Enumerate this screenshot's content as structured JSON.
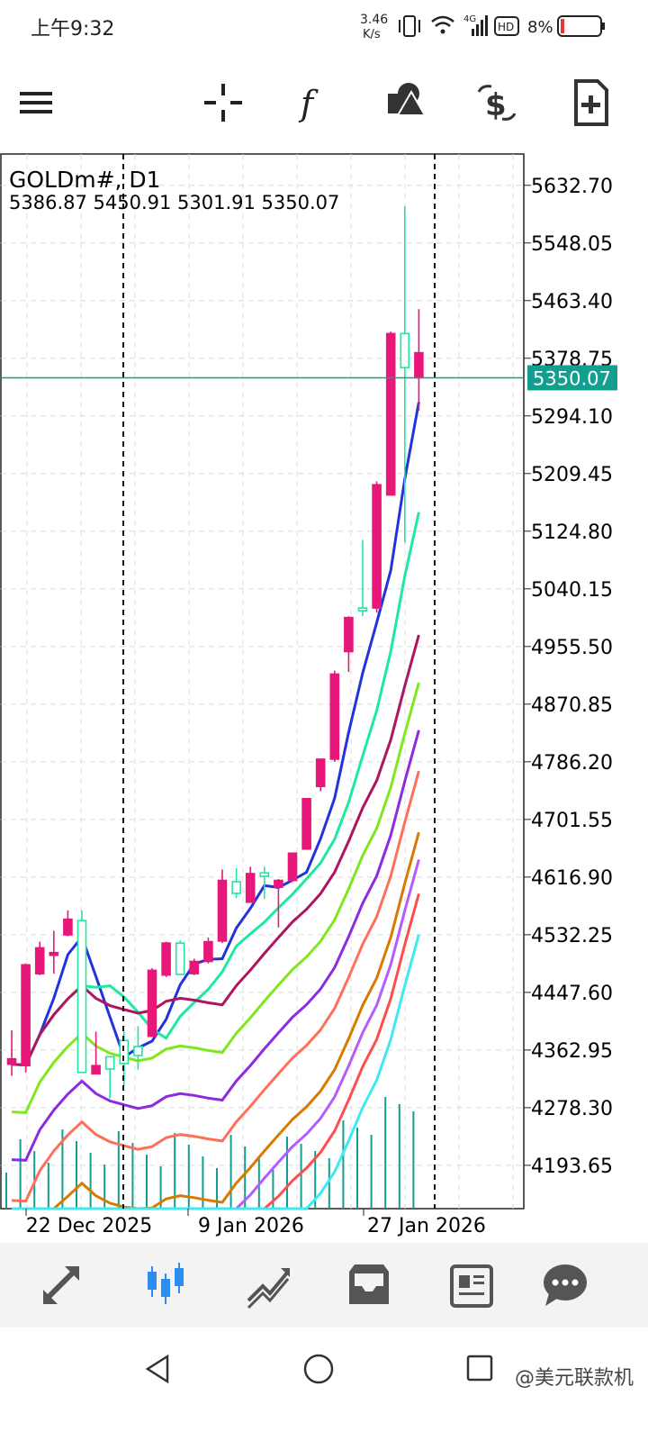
{
  "status_bar": {
    "time": "上午9:32",
    "net_speed_top": "3.46",
    "net_speed_bottom": "K/s",
    "network_type": "4G",
    "hd_label": "HD",
    "battery": "8%"
  },
  "toolbar": {
    "icons": [
      "menu-icon",
      "crosshair-icon",
      "indicators-icon",
      "objects-icon",
      "trade-icon",
      "new-order-icon"
    ]
  },
  "chart": {
    "symbol": "GOLDm#, D1",
    "ohlc_text": "5386.87 5450.91 5301.91 5350.07",
    "current_price": "5350.07",
    "y_labels": [
      "5632.70",
      "5548.05",
      "5463.40",
      "5378.75",
      "5294.10",
      "5209.45",
      "5124.80",
      "5040.15",
      "4955.50",
      "4870.85",
      "4786.20",
      "4701.55",
      "4616.90",
      "4532.25",
      "4447.60",
      "4362.95",
      "4278.30",
      "4193.65"
    ],
    "x_labels": [
      "22 Dec 2025",
      "9 Jan 2026",
      "27 Jan 2026"
    ],
    "colors": {
      "bear": "#e8177a",
      "bull": "#20e6a0",
      "price_line": "#139f90",
      "grid": "#dcdcdc"
    }
  },
  "chart_data": {
    "type": "candlestick",
    "symbol": "GOLDm#",
    "timeframe": "D1",
    "ylim": [
      4130,
      5680
    ],
    "last": {
      "open": 5386.87,
      "high": 5450.91,
      "low": 5301.91,
      "close": 5350.07
    },
    "candles": [
      {
        "o": 4350,
        "h": 4392,
        "l": 4325,
        "c": 4342
      },
      {
        "o": 4488,
        "h": 4490,
        "l": 4330,
        "c": 4340
      },
      {
        "o": 4513,
        "h": 4522,
        "l": 4473,
        "c": 4475
      },
      {
        "o": 4506,
        "h": 4538,
        "l": 4475,
        "c": 4502
      },
      {
        "o": 4555,
        "h": 4568,
        "l": 4530,
        "c": 4532
      },
      {
        "o": 4330,
        "h": 4568,
        "l": 4330,
        "c": 4553
      },
      {
        "o": 4340,
        "h": 4390,
        "l": 4327,
        "c": 4328
      },
      {
        "o": 4335,
        "h": 4352,
        "l": 4292,
        "c": 4353
      },
      {
        "o": 4343,
        "h": 4390,
        "l": 4310,
        "c": 4377
      },
      {
        "o": 4355,
        "h": 4398,
        "l": 4334,
        "c": 4368
      },
      {
        "o": 4480,
        "h": 4483,
        "l": 4382,
        "c": 4383
      },
      {
        "o": 4520,
        "h": 4522,
        "l": 4470,
        "c": 4473
      },
      {
        "o": 4474,
        "h": 4524,
        "l": 4478,
        "c": 4520
      },
      {
        "o": 4493,
        "h": 4497,
        "l": 4473,
        "c": 4475
      },
      {
        "o": 4522,
        "h": 4528,
        "l": 4490,
        "c": 4493
      },
      {
        "o": 4612,
        "h": 4628,
        "l": 4520,
        "c": 4523
      },
      {
        "o": 4593,
        "h": 4630,
        "l": 4586,
        "c": 4610
      },
      {
        "o": 4622,
        "h": 4632,
        "l": 4579,
        "c": 4580
      },
      {
        "o": 4618,
        "h": 4632,
        "l": 4585,
        "c": 4623
      },
      {
        "o": 4612,
        "h": 4614,
        "l": 4543,
        "c": 4602
      },
      {
        "o": 4652,
        "h": 4652,
        "l": 4610,
        "c": 4612
      },
      {
        "o": 4732,
        "h": 4732,
        "l": 4658,
        "c": 4658
      },
      {
        "o": 4790,
        "h": 4790,
        "l": 4743,
        "c": 4750
      },
      {
        "o": 4915,
        "h": 4920,
        "l": 4786,
        "c": 4790
      },
      {
        "o": 4998,
        "h": 5000,
        "l": 4918,
        "c": 4948
      },
      {
        "o": 5008,
        "h": 5112,
        "l": 5000,
        "c": 5012
      },
      {
        "o": 5193,
        "h": 5198,
        "l": 5005,
        "c": 5012
      },
      {
        "o": 5415,
        "h": 5418,
        "l": 5182,
        "c": 5178
      },
      {
        "o": 5365,
        "h": 5602,
        "l": 5108,
        "c": 5415
      },
      {
        "o": 5386.87,
        "h": 5450.91,
        "l": 5301.91,
        "c": 5350.07
      }
    ]
  },
  "bottom_bar": {
    "icons": [
      "quotes-icon",
      "chart-icon",
      "trade-tab-icon",
      "history-icon",
      "news-icon",
      "messages-icon"
    ]
  },
  "nav_bar": {
    "watermark": "@美元联款机"
  }
}
